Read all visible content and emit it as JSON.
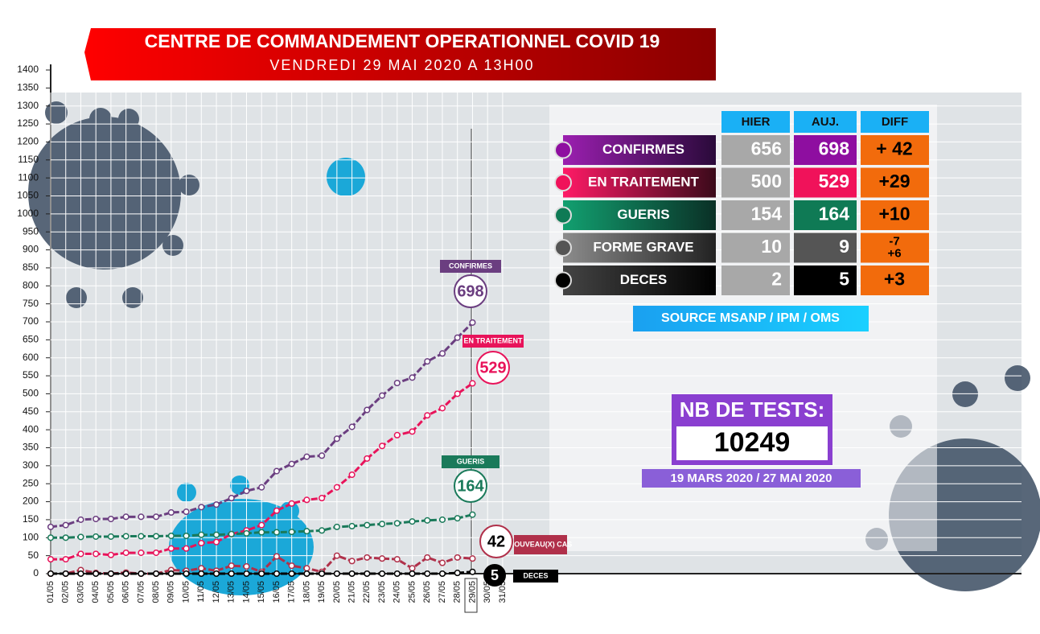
{
  "chart_data": {
    "type": "line",
    "title": "CENTRE DE COMMANDEMENT OPERATIONNEL COVID 19",
    "subtitle": "VENDREDI 29 MAI 2020 A 13H00",
    "categories": [
      "01/05",
      "02/05",
      "03/05",
      "04/05",
      "05/05",
      "06/05",
      "07/05",
      "08/05",
      "09/05",
      "10/05",
      "11/05",
      "12/05",
      "13/05",
      "14/05",
      "15/05",
      "16/05",
      "17/05",
      "18/05",
      "19/05",
      "20/05",
      "21/05",
      "22/05",
      "23/05",
      "24/05",
      "25/05",
      "26/05",
      "27/05",
      "28/05",
      "29/05",
      "30/05",
      "31/05"
    ],
    "ylim": [
      0,
      1400
    ],
    "yticks": [
      0,
      50,
      100,
      150,
      200,
      250,
      300,
      350,
      400,
      450,
      500,
      550,
      600,
      650,
      700,
      750,
      800,
      850,
      900,
      950,
      1000,
      1050,
      1100,
      1150,
      1200,
      1250,
      1300,
      1350,
      1400
    ],
    "series": [
      {
        "name": "CONFIRMES",
        "color": "#6b3e80",
        "values": [
          130,
          135,
          150,
          152,
          152,
          158,
          158,
          158,
          170,
          172,
          185,
          192,
          210,
          230,
          240,
          285,
          305,
          325,
          328,
          375,
          408,
          455,
          495,
          530,
          545,
          590,
          612,
          656,
          698,
          null,
          null
        ]
      },
      {
        "name": "EN TRAITEMENT",
        "color": "#e8135a",
        "values": [
          40,
          40,
          55,
          55,
          52,
          58,
          58,
          58,
          70,
          70,
          85,
          88,
          110,
          120,
          135,
          175,
          195,
          205,
          210,
          240,
          275,
          320,
          355,
          385,
          395,
          440,
          460,
          500,
          529,
          null,
          null
        ]
      },
      {
        "name": "GUERIS",
        "color": "#1a7a5a",
        "values": [
          100,
          100,
          102,
          103,
          103,
          104,
          104,
          104,
          105,
          105,
          108,
          108,
          110,
          112,
          115,
          115,
          116,
          118,
          120,
          130,
          132,
          135,
          138,
          140,
          145,
          148,
          150,
          154,
          164,
          null,
          null
        ]
      },
      {
        "name": "NOUVEAU(X) CAS",
        "color": "#b0304a",
        "values": [
          0,
          0,
          10,
          2,
          0,
          3,
          0,
          0,
          10,
          8,
          15,
          8,
          22,
          20,
          5,
          48,
          22,
          15,
          5,
          50,
          35,
          45,
          42,
          40,
          15,
          45,
          30,
          45,
          42,
          null,
          null
        ]
      },
      {
        "name": "DECES",
        "color": "#000000",
        "values": [
          0,
          0,
          0,
          0,
          0,
          0,
          0,
          0,
          0,
          0,
          0,
          0,
          0,
          0,
          0,
          0,
          0,
          0,
          0,
          0,
          0,
          0,
          0,
          0,
          0,
          0,
          0,
          2,
          5,
          null,
          null
        ]
      }
    ]
  },
  "table": {
    "columns": [
      "HIER",
      "AUJ.",
      "DIFF"
    ],
    "rows": [
      {
        "label": "CONFIRMES",
        "hier": "656",
        "auj": "698",
        "diff": [
          "+ 42"
        ]
      },
      {
        "label": "EN TRAITEMENT",
        "hier": "500",
        "auj": "529",
        "diff": [
          "+29"
        ]
      },
      {
        "label": "GUERIS",
        "hier": "154",
        "auj": "164",
        "diff": [
          "+10"
        ]
      },
      {
        "label": "FORME GRAVE",
        "hier": "10",
        "auj": "9",
        "diff": [
          "-7",
          "+6"
        ]
      },
      {
        "label": "DECES",
        "hier": "2",
        "auj": "5",
        "diff": [
          "+3"
        ]
      }
    ]
  },
  "source": "SOURCE MSANP / IPM / OMS",
  "tests": {
    "title": "NB DE TESTS:",
    "value": "10249",
    "period": "19 MARS 2020 / 27 MAI 2020"
  }
}
